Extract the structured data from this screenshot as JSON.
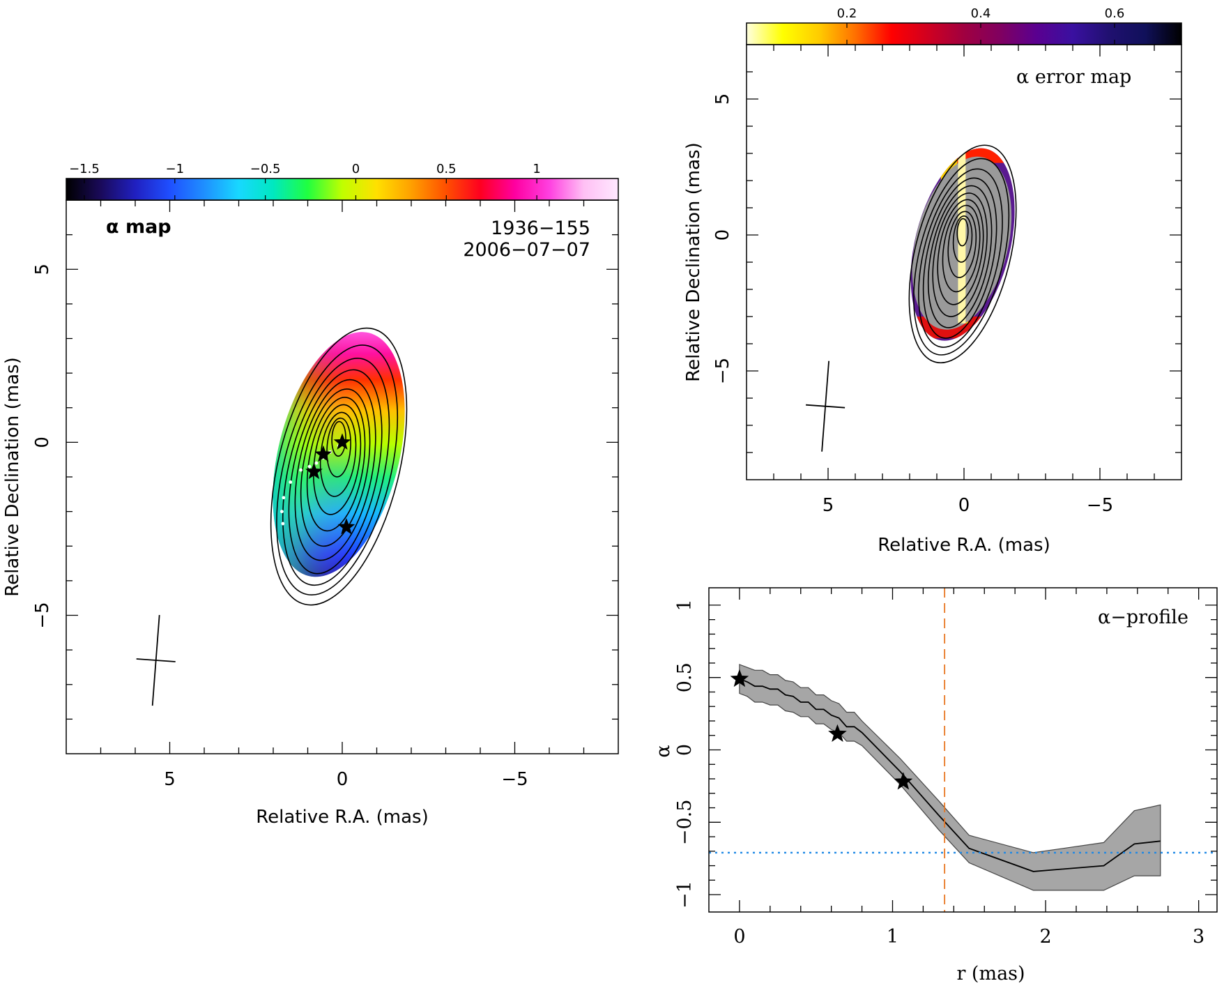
{
  "colors": {
    "alpha_cmap": [
      "#000000",
      "#1a0a5a",
      "#2020c0",
      "#1f4fff",
      "#1f8fff",
      "#18d8ff",
      "#00e8c0",
      "#20ff40",
      "#c0ff00",
      "#ffe000",
      "#ffa000",
      "#ff5000",
      "#ff0020",
      "#ff00a0",
      "#ff40e0",
      "#ffc0f4",
      "#ffe8ff"
    ],
    "error_cmap": [
      "#ffffe0",
      "#ffff00",
      "#ffcc00",
      "#ff7000",
      "#ff0000",
      "#d00020",
      "#a00040",
      "#800060",
      "#5a0090",
      "#3a10a0",
      "#201070",
      "#10105a",
      "#000000"
    ],
    "profile_band": "#a6a6a6",
    "threshold_line": "#1e88e5",
    "radius_line": "#e87722"
  },
  "chart_data": [
    {
      "id": "alpha_map",
      "type": "heatmap",
      "title": "α  map",
      "source": "1936−155",
      "date": "2006−07−07",
      "xlabel": "Relative R.A. (mas)",
      "ylabel": "Relative Declination (mas)",
      "xlim": [
        8,
        -8
      ],
      "ylim": [
        -9,
        7
      ],
      "xticks": [
        {
          "v": 5,
          "label": "5"
        },
        {
          "v": 0,
          "label": "0"
        },
        {
          "v": -5,
          "label": "−5"
        }
      ],
      "yticks": [
        {
          "v": 5,
          "label": "5"
        },
        {
          "v": 0,
          "label": "0"
        },
        {
          "v": -5,
          "label": "−5"
        }
      ],
      "colorbar": {
        "range": [
          -1.6,
          1.45
        ],
        "ticks": [
          {
            "v": -1.5,
            "label": "−1.5"
          },
          {
            "v": -1,
            "label": "−1"
          },
          {
            "v": -0.5,
            "label": "−0.5"
          },
          {
            "v": 0,
            "label": "0"
          },
          {
            "v": 0.5,
            "label": "0.5"
          },
          {
            "v": 1,
            "label": "1"
          }
        ]
      },
      "stars": [
        {
          "x": 0,
          "y": 0
        },
        {
          "x": 0.55,
          "y": -0.35
        },
        {
          "x": 0.82,
          "y": -0.85
        },
        {
          "x": -0.12,
          "y": -2.45
        }
      ],
      "ridge_points": [
        [
          0.1,
          -0.1
        ],
        [
          0.35,
          -0.28
        ],
        [
          0.55,
          -0.45
        ],
        [
          0.75,
          -0.6
        ],
        [
          0.95,
          -0.7
        ],
        [
          1.2,
          -0.8
        ],
        [
          1.5,
          -1.15
        ],
        [
          1.7,
          -1.6
        ],
        [
          1.75,
          -2.0
        ],
        [
          1.72,
          -2.35
        ]
      ],
      "beam_center": [
        5.4,
        -6.3
      ]
    },
    {
      "id": "error_map",
      "type": "heatmap",
      "title": "α error map",
      "xlabel": "Relative R.A. (mas)",
      "ylabel": "Relative Declination (mas)",
      "xlim": [
        8,
        -8
      ],
      "ylim": [
        -9,
        7
      ],
      "xticks": [
        {
          "v": 5,
          "label": "5"
        },
        {
          "v": 0,
          "label": "0"
        },
        {
          "v": -5,
          "label": "−5"
        }
      ],
      "yticks": [
        {
          "v": 5,
          "label": "5"
        },
        {
          "v": 0,
          "label": "0"
        },
        {
          "v": -5,
          "label": "−5"
        }
      ],
      "colorbar": {
        "range": [
          0.05,
          0.7
        ],
        "ticks": [
          {
            "v": 0.2,
            "label": "0.2"
          },
          {
            "v": 0.4,
            "label": "0.4"
          },
          {
            "v": 0.6,
            "label": "0.6"
          }
        ]
      },
      "beam_center": [
        5.1,
        -6.3
      ]
    },
    {
      "id": "alpha_profile",
      "type": "line",
      "title": "α−profile",
      "xlabel": "r (mas)",
      "ylabel": "α",
      "xlim": [
        -0.2,
        3.12
      ],
      "ylim": [
        -1.12,
        1.12
      ],
      "xticks": [
        {
          "v": 0,
          "label": "0"
        },
        {
          "v": 1,
          "label": "1"
        },
        {
          "v": 2,
          "label": "2"
        },
        {
          "v": 3,
          "label": "3"
        }
      ],
      "yticks": [
        {
          "v": 1,
          "label": "1"
        },
        {
          "v": 0.5,
          "label": "0.5"
        },
        {
          "v": 0,
          "label": "0"
        },
        {
          "v": -0.5,
          "label": "−0.5"
        },
        {
          "v": -1,
          "label": "−1"
        }
      ],
      "x": [
        0,
        0.05,
        0.1,
        0.15,
        0.2,
        0.25,
        0.3,
        0.35,
        0.4,
        0.45,
        0.5,
        0.55,
        0.6,
        0.65,
        0.7,
        0.75,
        0.8,
        1.05,
        1.3,
        1.5,
        1.92,
        2.38,
        2.58,
        2.75
      ],
      "series": [
        {
          "y": [
            0.49,
            0.47,
            0.44,
            0.44,
            0.42,
            0.42,
            0.38,
            0.37,
            0.33,
            0.33,
            0.28,
            0.28,
            0.24,
            0.22,
            0.16,
            0.16,
            0.12,
            -0.15,
            -0.45,
            -0.68,
            -0.84,
            -0.8,
            -0.65,
            -0.63
          ],
          "upper": [
            0.59,
            0.57,
            0.55,
            0.55,
            0.52,
            0.52,
            0.48,
            0.47,
            0.43,
            0.43,
            0.38,
            0.38,
            0.34,
            0.32,
            0.26,
            0.26,
            0.2,
            -0.06,
            -0.35,
            -0.59,
            -0.71,
            -0.64,
            -0.42,
            -0.38
          ],
          "lower": [
            0.39,
            0.37,
            0.33,
            0.33,
            0.31,
            0.31,
            0.27,
            0.26,
            0.23,
            0.23,
            0.18,
            0.18,
            0.14,
            0.12,
            0.06,
            0.06,
            0.03,
            -0.24,
            -0.55,
            -0.78,
            -0.97,
            -0.97,
            -0.87,
            -0.87
          ]
        }
      ],
      "stars": [
        {
          "x": 0.0,
          "y": 0.49
        },
        {
          "x": 0.64,
          "y": 0.11
        },
        {
          "x": 1.07,
          "y": -0.22
        }
      ],
      "hline": -0.71,
      "vline": 1.34
    }
  ]
}
